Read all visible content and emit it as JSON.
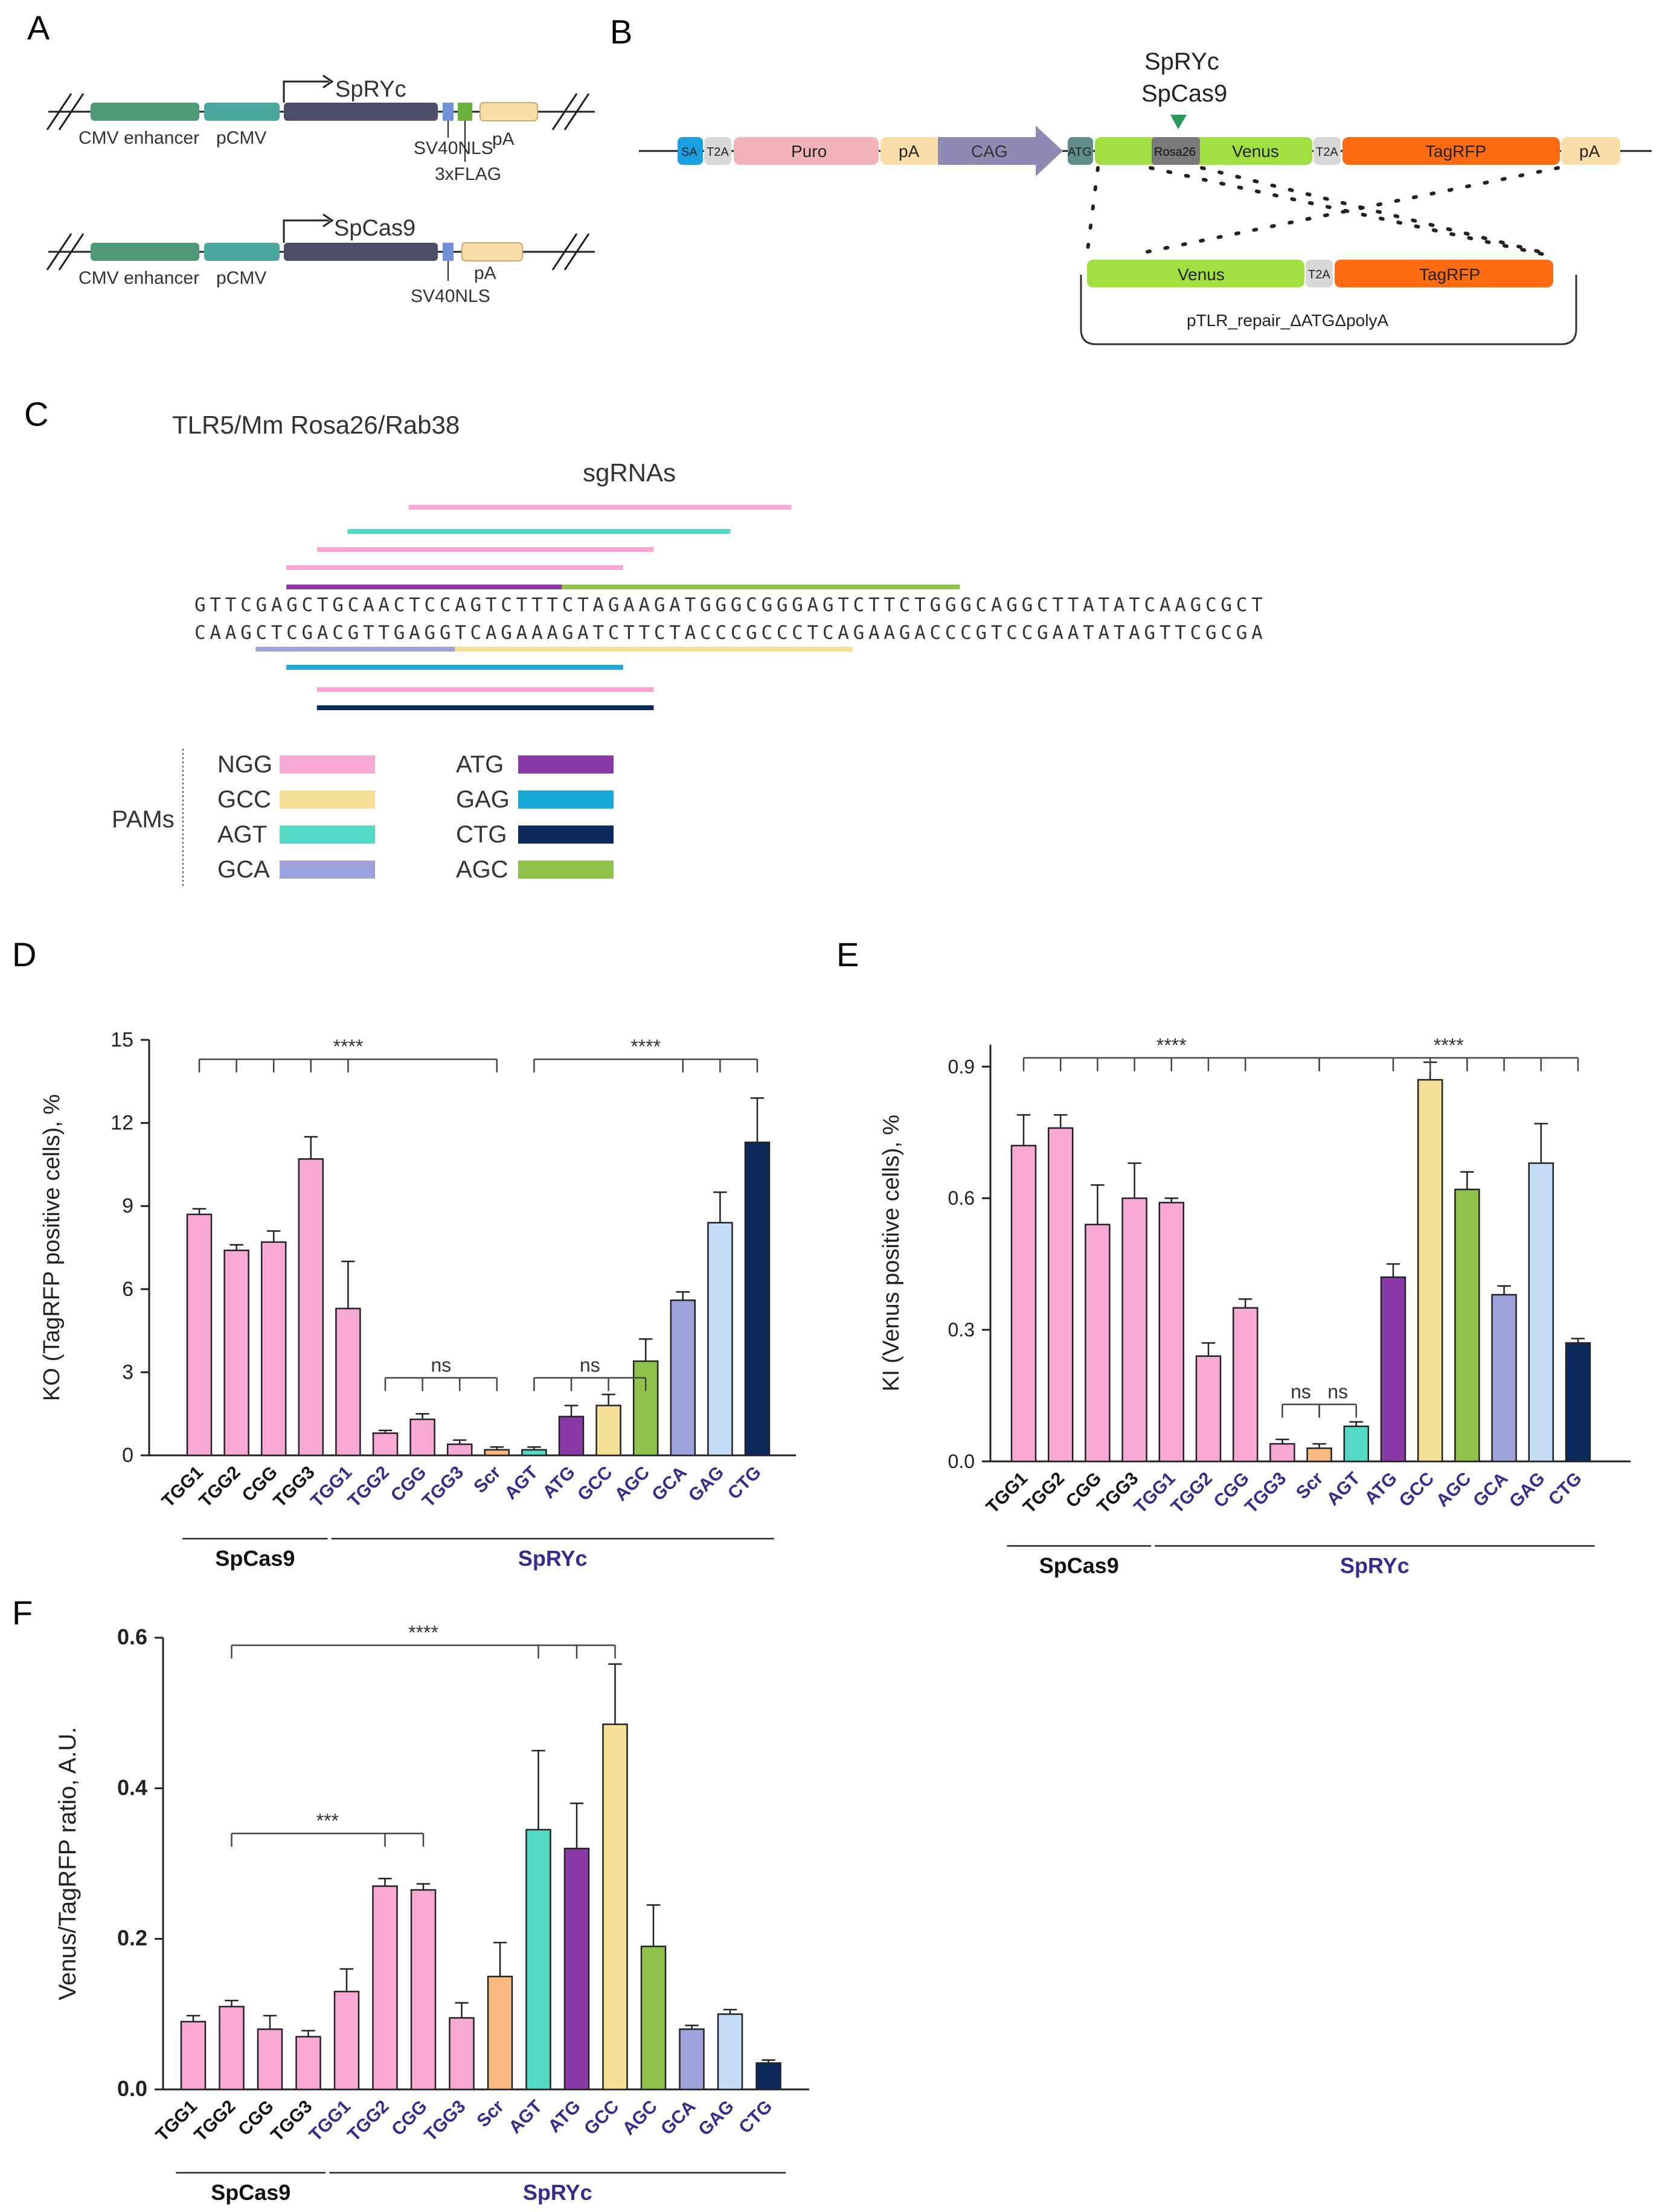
{
  "panels": {
    "A": "A",
    "B": "B",
    "C": "C",
    "D": "D",
    "E": "E",
    "F": "F"
  },
  "colors": {
    "pink": "#f7a8d4",
    "tan": "#f5de96",
    "teal": "#54dac4",
    "lavender": "#9da2dc",
    "purple": "#8a3aa8",
    "cyan": "#19a9d9",
    "navy": "#0c2a5c",
    "green": "#8fc24a",
    "orange": "#f9b87f",
    "lightblue": "#c4dcf5",
    "spryc": "#3b2a8c"
  },
  "panelA": {
    "construct1": {
      "name": "SpRYc",
      "enhancer": "CMV enhancer",
      "promoter": "pCMV",
      "nls": "SV40NLS",
      "flag": "3xFLAG",
      "pa": "pA"
    },
    "construct2": {
      "name": "SpCas9",
      "enhancer": "CMV enhancer",
      "promoter": "pCMV",
      "nls": "SV40NLS",
      "pa": "pA"
    }
  },
  "panelB": {
    "nuclease1": "SpRYc",
    "nuclease2": "SpCas9",
    "elements": {
      "sa": "SA",
      "t2a": "T2A",
      "puro": "Puro",
      "pa": "pA",
      "cag": "CAG",
      "atg": "ATG",
      "rosa": "Rosa26",
      "venus": "Venus",
      "tagrfp": "TagRFP"
    },
    "repair_label": "pTLR_repair_ΔATGΔpolyA"
  },
  "panelC": {
    "title": "TLR5/Mm Rosa26/Rab38",
    "sgrna_label": "sgRNAs",
    "seq_top": "GTTCGAGCTGCAACTCCAGTCTTTCTAGAAGATGGGCGGGAGTCTTCTGGGCAGGCTTATATCAAGCGCT",
    "seq_bottom": "CAAGCTCGACGTTGAGGTCAGAAAGATCTTCTACCCGCCCTCAGAAGACCCGTCCGAATATAGTTCGCGA",
    "pam_title": "PAMs",
    "legend": [
      {
        "label": "NGG",
        "color": "#f7a8d4"
      },
      {
        "label": "GCC",
        "color": "#f5de96"
      },
      {
        "label": "AGT",
        "color": "#54dac4"
      },
      {
        "label": "GCA",
        "color": "#9da2dc"
      },
      {
        "label": "ATG",
        "color": "#8a3aa8"
      },
      {
        "label": "GAG",
        "color": "#19a9d9"
      },
      {
        "label": "CTG",
        "color": "#0c2a5c"
      },
      {
        "label": "AGC",
        "color": "#8fc24a"
      }
    ]
  },
  "chart_data": [
    {
      "panel": "D",
      "type": "bar",
      "ylabel": "KO (TagRFP positive cells), %",
      "ylim": [
        0,
        15
      ],
      "yticks": [
        0,
        3,
        6,
        9,
        12,
        15
      ],
      "categories": [
        "TGG1",
        "TGG2",
        "CGG",
        "TGG3",
        "TGG1",
        "TGG2",
        "CGG",
        "TGG3",
        "Scr",
        "AGT",
        "ATG",
        "GCC",
        "AGC",
        "GCA",
        "GAG",
        "CTG"
      ],
      "values": [
        8.7,
        7.4,
        7.7,
        10.7,
        5.3,
        0.8,
        1.3,
        0.4,
        0.2,
        0.2,
        1.4,
        1.8,
        3.4,
        5.6,
        8.4,
        11.3
      ],
      "errors": [
        0.2,
        0.2,
        0.4,
        0.8,
        1.7,
        0.1,
        0.2,
        0.15,
        0.1,
        0.1,
        0.4,
        0.4,
        0.8,
        0.3,
        1.1,
        1.6
      ],
      "colors": [
        "#f7a8d4",
        "#f7a8d4",
        "#f7a8d4",
        "#f7a8d4",
        "#f7a8d4",
        "#f7a8d4",
        "#f7a8d4",
        "#f7a8d4",
        "#f9b87f",
        "#54dac4",
        "#8a3aa8",
        "#f5de96",
        "#8fc24a",
        "#9da2dc",
        "#c4dcf5",
        "#0c2a5c"
      ],
      "groups": [
        {
          "name": "SpCas9",
          "start": 0,
          "end": 3
        },
        {
          "name": "SpRYc",
          "start": 4,
          "end": 15
        }
      ],
      "sig": [
        {
          "label": "****",
          "level": 14.3,
          "ref": 8,
          "targets": [
            0,
            1,
            2,
            3,
            4
          ]
        },
        {
          "label": "****",
          "level": 14.3,
          "ref": 9,
          "targets": [
            13,
            14,
            15
          ]
        },
        {
          "label": "ns",
          "level": 2.8,
          "ref": 8,
          "targets": [
            5,
            6,
            7
          ]
        },
        {
          "label": "ns",
          "level": 2.8,
          "ref": 9,
          "targets": [
            10,
            11,
            12
          ]
        }
      ]
    },
    {
      "panel": "E",
      "type": "bar",
      "ylabel": "KI (Venus positive cells), %",
      "ylim": [
        0,
        0.95
      ],
      "yticks": [
        0.0,
        0.3,
        0.6,
        0.9
      ],
      "categories": [
        "TGG1",
        "TGG2",
        "CGG",
        "TGG3",
        "TGG1",
        "TGG2",
        "CGG",
        "TGG3",
        "Scr",
        "AGT",
        "ATG",
        "GCC",
        "AGC",
        "GCA",
        "GAG",
        "CTG"
      ],
      "values": [
        0.72,
        0.76,
        0.54,
        0.6,
        0.59,
        0.24,
        0.35,
        0.04,
        0.03,
        0.08,
        0.42,
        0.87,
        0.62,
        0.38,
        0.68,
        0.27
      ],
      "errors": [
        0.07,
        0.03,
        0.09,
        0.08,
        0.01,
        0.03,
        0.02,
        0.01,
        0.01,
        0.01,
        0.03,
        0.04,
        0.04,
        0.02,
        0.09,
        0.01
      ],
      "colors": [
        "#f7a8d4",
        "#f7a8d4",
        "#f7a8d4",
        "#f7a8d4",
        "#f7a8d4",
        "#f7a8d4",
        "#f7a8d4",
        "#f7a8d4",
        "#f9b87f",
        "#54dac4",
        "#8a3aa8",
        "#f5de96",
        "#8fc24a",
        "#9da2dc",
        "#c4dcf5",
        "#0c2a5c"
      ],
      "groups": [
        {
          "name": "SpCas9",
          "start": 0,
          "end": 3
        },
        {
          "name": "SpRYc",
          "start": 4,
          "end": 15
        }
      ],
      "sig": [
        {
          "label": "****",
          "level": 0.92,
          "ref": 8,
          "targets": [
            0,
            1,
            2,
            3,
            4,
            5,
            6
          ]
        },
        {
          "label": "****",
          "level": 0.92,
          "ref": 8,
          "targets": [
            10,
            11,
            12,
            13,
            14,
            15
          ]
        },
        {
          "label": "ns",
          "level": 0.13,
          "ref": 8,
          "targets": [
            7
          ]
        },
        {
          "label": "ns",
          "level": 0.13,
          "ref": 8,
          "targets": [
            9
          ]
        }
      ]
    },
    {
      "panel": "F",
      "type": "bar",
      "ylabel": "Venus/TagRFP ratio, A.U.",
      "ylim": [
        0,
        0.6
      ],
      "yticks": [
        0.0,
        0.2,
        0.4,
        0.6
      ],
      "categories": [
        "TGG1",
        "TGG2",
        "CGG",
        "TGG3",
        "TGG1",
        "TGG2",
        "CGG",
        "TGG3",
        "Scr",
        "AGT",
        "ATG",
        "GCC",
        "AGC",
        "GCA",
        "GAG",
        "CTG"
      ],
      "values": [
        0.09,
        0.11,
        0.08,
        0.07,
        0.13,
        0.27,
        0.265,
        0.095,
        0.15,
        0.345,
        0.32,
        0.485,
        0.19,
        0.08,
        0.1,
        0.035
      ],
      "errors": [
        0.008,
        0.008,
        0.018,
        0.008,
        0.03,
        0.01,
        0.008,
        0.02,
        0.045,
        0.105,
        0.06,
        0.08,
        0.055,
        0.005,
        0.006,
        0.004
      ],
      "colors": [
        "#f7a8d4",
        "#f7a8d4",
        "#f7a8d4",
        "#f7a8d4",
        "#f7a8d4",
        "#f7a8d4",
        "#f7a8d4",
        "#f7a8d4",
        "#f9b87f",
        "#54dac4",
        "#8a3aa8",
        "#f5de96",
        "#8fc24a",
        "#9da2dc",
        "#c4dcf5",
        "#0c2a5c"
      ],
      "groups": [
        {
          "name": "SpCas9",
          "start": 0,
          "end": 3
        },
        {
          "name": "SpRYc",
          "start": 4,
          "end": 15
        }
      ],
      "sig": [
        {
          "label": "****",
          "level": 0.59,
          "ref": 1,
          "targets": [
            9,
            10,
            11
          ]
        },
        {
          "label": "***",
          "level": 0.34,
          "ref": 1,
          "targets": [
            5,
            6
          ]
        }
      ]
    }
  ]
}
